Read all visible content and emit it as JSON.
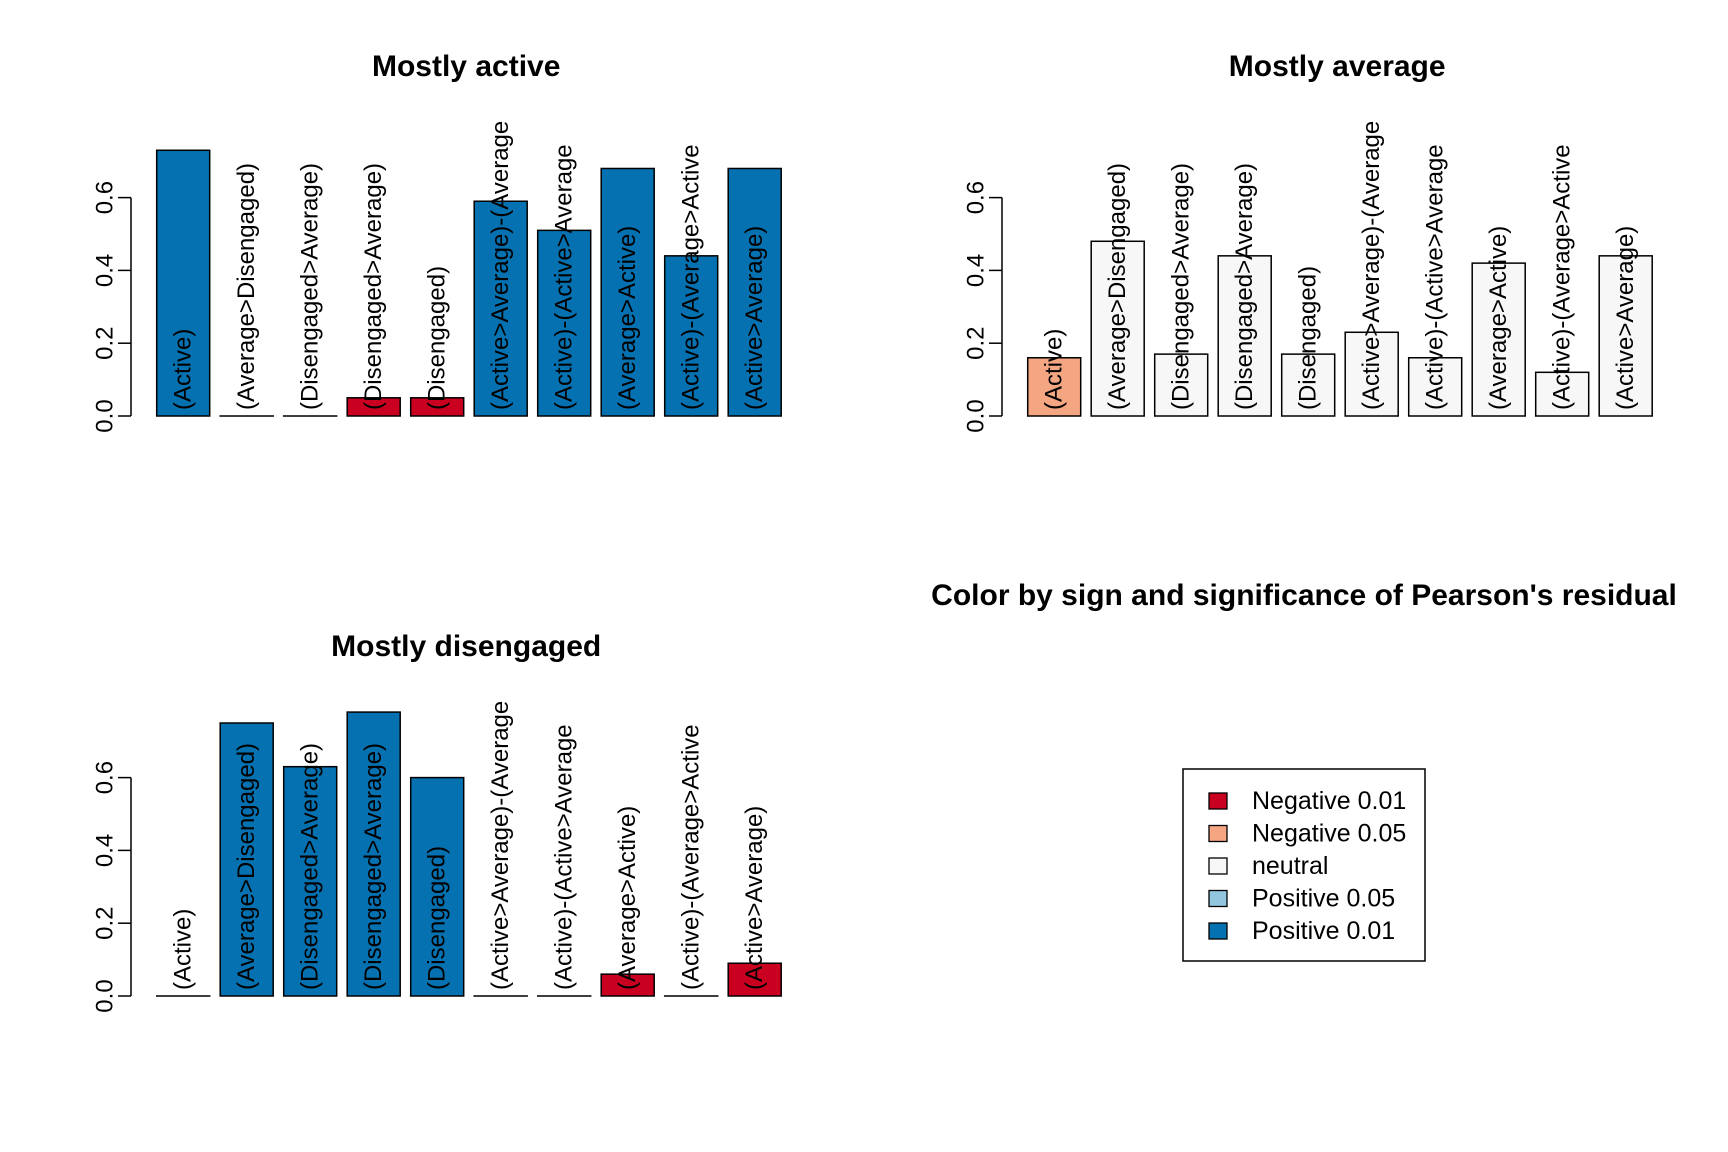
{
  "legend": {
    "title": "Color by sign and significance of Pearson's residual",
    "items": [
      {
        "label": "Negative 0.01",
        "color": "#CA0020"
      },
      {
        "label": "Negative 0.05",
        "color": "#F4A582"
      },
      {
        "label": "neutral",
        "color": "#F7F7F7"
      },
      {
        "label": "Positive 0.05",
        "color": "#92C5DE"
      },
      {
        "label": "Positive 0.01",
        "color": "#0571B0"
      }
    ]
  },
  "chart_data": [
    {
      "type": "bar",
      "title": "Mostly active",
      "xlabel": "",
      "ylabel": "",
      "ylim": [
        0,
        0.75
      ],
      "yticks": [
        "0.0",
        "0.2",
        "0.4",
        "0.6"
      ],
      "categories": [
        "(Active)",
        "(Average>Disengaged)",
        "(Disengaged>Average)",
        "(Disengaged>Average)",
        "(Disengaged)",
        "(Active>Average)-(Average",
        "(Active)-(Active>Average",
        "(Average>Active)",
        "(Active)-(Average>Active",
        "(Active>Average)"
      ],
      "values": [
        0.73,
        0.0,
        0.0,
        0.05,
        0.05,
        0.59,
        0.51,
        0.68,
        0.44,
        0.68
      ],
      "colors": [
        "#0571B0",
        "#0571B0",
        "#0571B0",
        "#CA0020",
        "#CA0020",
        "#0571B0",
        "#0571B0",
        "#0571B0",
        "#0571B0",
        "#0571B0"
      ]
    },
    {
      "type": "bar",
      "title": "Mostly average",
      "xlabel": "",
      "ylabel": "",
      "ylim": [
        0,
        0.75
      ],
      "yticks": [
        "0.0",
        "0.2",
        "0.4",
        "0.6"
      ],
      "categories": [
        "(Active)",
        "(Average>Disengaged)",
        "(Disengaged>Average)",
        "(Disengaged>Average)",
        "(Disengaged)",
        "(Active>Average)-(Average",
        "(Active)-(Active>Average",
        "(Average>Active)",
        "(Active)-(Average>Active",
        "(Active>Average)"
      ],
      "values": [
        0.16,
        0.48,
        0.17,
        0.44,
        0.17,
        0.23,
        0.16,
        0.42,
        0.12,
        0.44
      ],
      "colors": [
        "#F4A582",
        "#F7F7F7",
        "#F7F7F7",
        "#F7F7F7",
        "#F7F7F7",
        "#F7F7F7",
        "#F7F7F7",
        "#F7F7F7",
        "#F7F7F7",
        "#F7F7F7"
      ]
    },
    {
      "type": "bar",
      "title": "Mostly disengaged",
      "xlabel": "",
      "ylabel": "",
      "ylim": [
        0,
        0.75
      ],
      "yticks": [
        "0.0",
        "0.2",
        "0.4",
        "0.6"
      ],
      "categories": [
        "(Active)",
        "(Average>Disengaged)",
        "(Disengaged>Average)",
        "(Disengaged>Average)",
        "(Disengaged)",
        "(Active>Average)-(Average",
        "(Active)-(Active>Average",
        "(Average>Active)",
        "(Active)-(Average>Active",
        "(Active>Average)"
      ],
      "values": [
        0.0,
        0.75,
        0.63,
        0.78,
        0.6,
        0.0,
        0.0,
        0.06,
        0.0,
        0.09
      ],
      "colors": [
        "#0571B0",
        "#0571B0",
        "#0571B0",
        "#0571B0",
        "#0571B0",
        "#0571B0",
        "#0571B0",
        "#CA0020",
        "#0571B0",
        "#CA0020"
      ]
    }
  ]
}
